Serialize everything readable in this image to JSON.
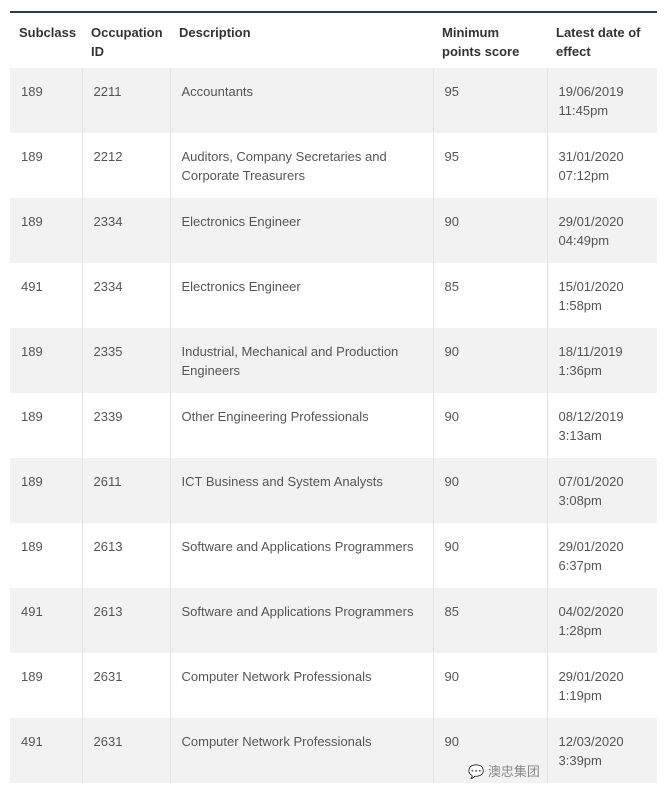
{
  "headers": [
    "Subclass",
    "Occupation ID",
    "Description",
    "Minimum points score",
    "Latest date of effect"
  ],
  "rows": [
    [
      "189",
      "2211",
      "Accountants",
      "95",
      "19/06/2019",
      "11:45pm"
    ],
    [
      "189",
      "2212",
      "Auditors, Company Secretaries and Corporate Treasurers",
      "95",
      "31/01/2020",
      "07:12pm"
    ],
    [
      "189",
      "2334",
      "Electronics Engineer",
      "90",
      "29/01/2020",
      "04:49pm"
    ],
    [
      "491",
      "2334",
      "Electronics Engineer",
      "85",
      "15/01/2020",
      "1:58pm"
    ],
    [
      "189",
      "2335",
      "Industrial, Mechanical and Production Engineers",
      "90",
      "18/11/2019",
      "1:36pm"
    ],
    [
      "189",
      "2339",
      "Other Engineering Professionals",
      "90",
      "08/12/2019",
      "3:13am"
    ],
    [
      "189",
      "2611",
      "ICT Business and System Analysts",
      "90",
      "07/01/2020",
      "3:08pm"
    ],
    [
      "189",
      "2613",
      "Software and Applications Programmers",
      "90",
      "29/01/2020",
      "6:37pm"
    ],
    [
      "491",
      "2613",
      "Software and Applications Programmers",
      "85",
      "04/02/2020",
      "1:28pm"
    ],
    [
      "189",
      "2631",
      "Computer Network Professionals",
      "90",
      "29/01/2020",
      "1:19pm"
    ],
    [
      "491",
      "2631",
      "Computer Network Professionals",
      "90",
      "12/03/2020",
      "3:39pm"
    ]
  ],
  "watermark": "澳忠集团"
}
